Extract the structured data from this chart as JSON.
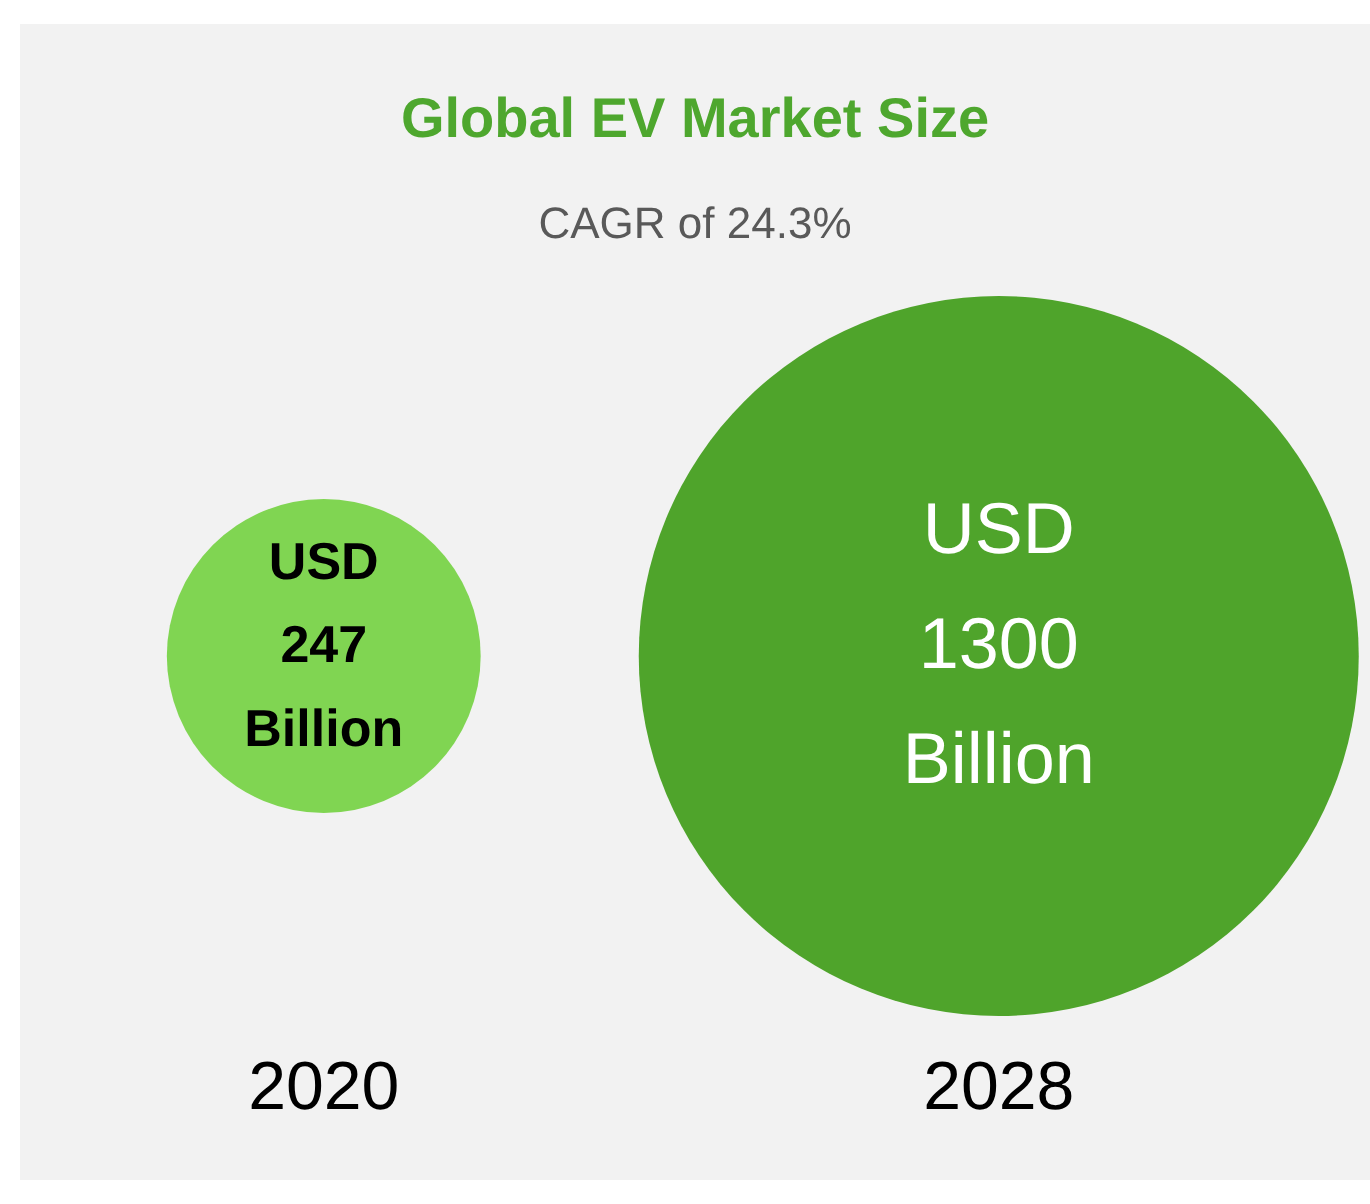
{
  "chart_data": {
    "type": "other",
    "title": "Global EV Market Size",
    "subtitle": "CAGR of 24.3%",
    "categories": [
      "2020",
      "2028"
    ],
    "values": [
      247,
      1300
    ],
    "value_labels": [
      "USD 247 Billion",
      "USD 1300 Billion"
    ],
    "colors": [
      "#80d552",
      "#4fa42b"
    ]
  }
}
